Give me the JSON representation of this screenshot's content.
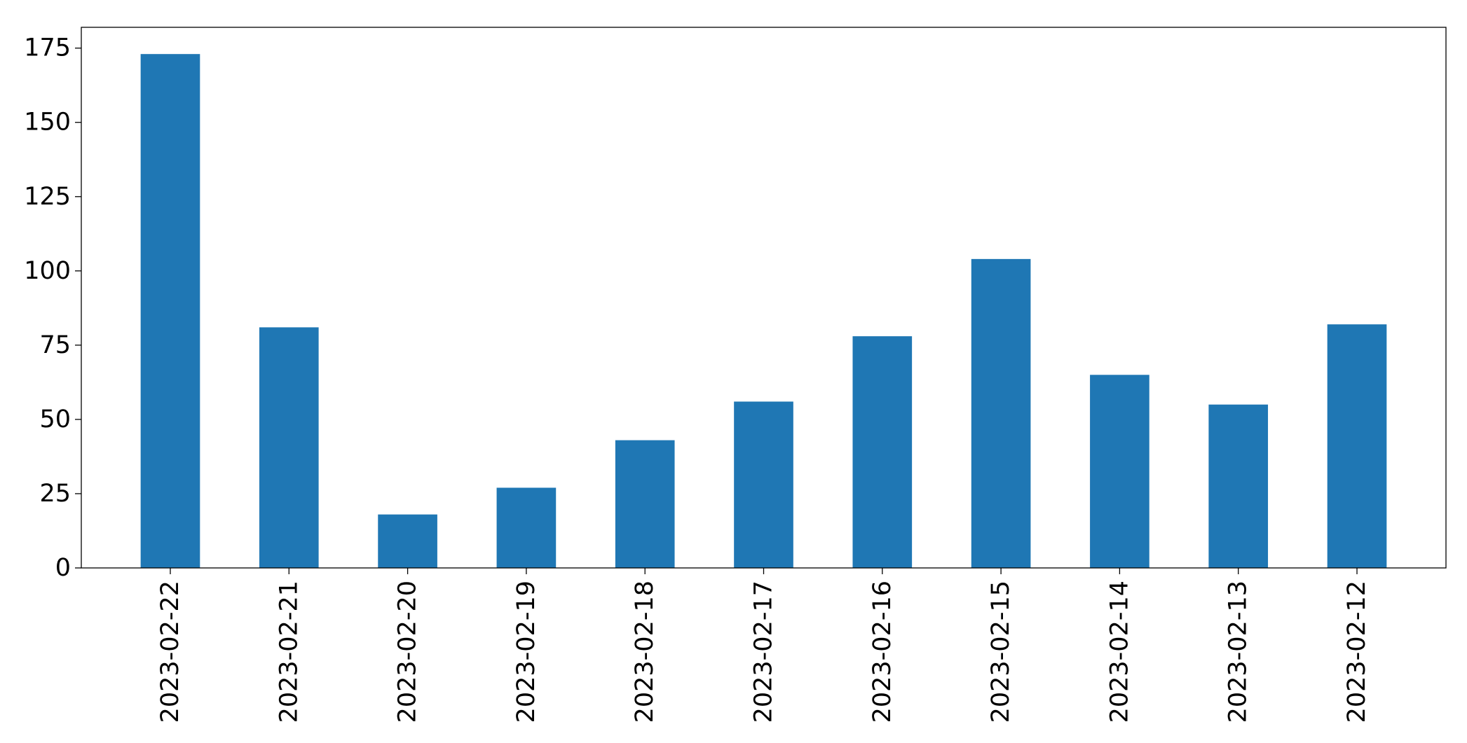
{
  "chart_data": {
    "type": "bar",
    "title": "",
    "xlabel": "",
    "ylabel": "",
    "categories": [
      "2023-02-22",
      "2023-02-21",
      "2023-02-20",
      "2023-02-19",
      "2023-02-18",
      "2023-02-17",
      "2023-02-16",
      "2023-02-15",
      "2023-02-14",
      "2023-02-13",
      "2023-02-12"
    ],
    "values": [
      173,
      81,
      18,
      27,
      43,
      56,
      78,
      104,
      65,
      55,
      82
    ],
    "ylim": [
      0,
      182
    ],
    "yticks": [
      0,
      25,
      50,
      75,
      100,
      125,
      150,
      175
    ],
    "ytick_labels": [
      "0",
      "25",
      "50",
      "75",
      "100",
      "125",
      "150",
      "175"
    ],
    "bar_color": "#1f77b4",
    "grid": false,
    "legend": "none"
  }
}
